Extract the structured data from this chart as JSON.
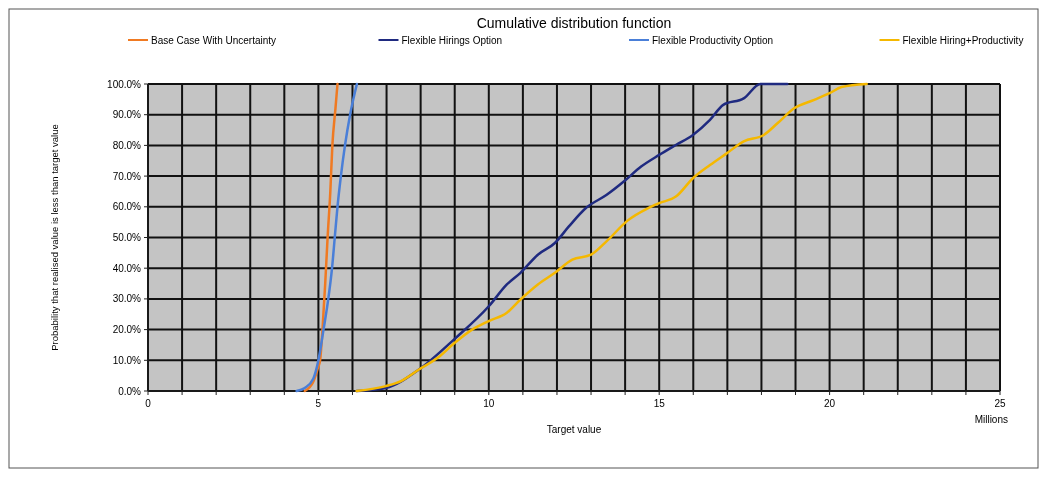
{
  "chart_data": {
    "type": "line",
    "title": "Cumulative distribution function",
    "xlabel": "Target value",
    "ylabel": "Probability that realised value is less than target value",
    "annotations": [
      "Millions"
    ],
    "xlim": [
      0,
      25
    ],
    "xticks": [
      0,
      {
        "value": 1,
        "label": null
      },
      {
        "value": 2,
        "label": null
      },
      {
        "value": 3,
        "label": null
      },
      {
        "value": 4,
        "label": null
      },
      5,
      {
        "value": 6,
        "label": null
      },
      {
        "value": 7,
        "label": null
      },
      {
        "value": 8,
        "label": null
      },
      {
        "value": 9,
        "label": null
      },
      10,
      {
        "value": 11,
        "label": null
      },
      {
        "value": 12,
        "label": null
      },
      {
        "value": 13,
        "label": null
      },
      {
        "value": 14,
        "label": null
      },
      15,
      {
        "value": 16,
        "label": null
      },
      {
        "value": 17,
        "label": null
      },
      {
        "value": 18,
        "label": null
      },
      {
        "value": 19,
        "label": null
      },
      20,
      {
        "value": 21,
        "label": null
      },
      {
        "value": 22,
        "label": null
      },
      {
        "value": 23,
        "label": null
      },
      {
        "value": 24,
        "label": null
      },
      25
    ],
    "ylim": [
      0,
      100
    ],
    "yticks": [
      {
        "value": 0,
        "label": "0.0%"
      },
      {
        "value": 10,
        "label": "10.0%"
      },
      {
        "value": 20,
        "label": "20.0%"
      },
      {
        "value": 30,
        "label": "30.0%"
      },
      {
        "value": 40,
        "label": "40.0%"
      },
      {
        "value": 50,
        "label": "50.0%"
      },
      {
        "value": 60,
        "label": "60.0%"
      },
      {
        "value": 70,
        "label": "70.0%"
      },
      {
        "value": 80,
        "label": "80.0%"
      },
      {
        "value": 90,
        "label": "90.0%"
      },
      {
        "value": 100,
        "label": "100.0%"
      }
    ],
    "grid": true,
    "legend": "top",
    "marker": "none",
    "line_style": "solid",
    "series": [
      {
        "name": "Base Case With Uncertainty",
        "color": "#f07a22",
        "x": [
          4.6,
          4.85,
          5.0,
          5.05,
          5.12,
          5.2,
          5.27,
          5.35,
          5.41,
          5.5,
          5.56
        ],
        "values": [
          0,
          3,
          8,
          10,
          20,
          35,
          50,
          65,
          80,
          92,
          100
        ]
      },
      {
        "name": "Flexible Hirings Option",
        "color": "#1f2a80",
        "x": [
          6.12,
          6.98,
          7.95,
          9.0,
          10.0,
          10.53,
          10.93,
          11.44,
          11.94,
          12.35,
          12.85,
          13.46,
          13.97,
          14.47,
          15.0,
          15.5,
          15.99,
          16.49,
          16.88,
          17.48,
          17.97,
          18.76
        ],
        "values": [
          0,
          1,
          7,
          17,
          27.6,
          34.7,
          38.5,
          44.4,
          48.2,
          53.6,
          59.6,
          63.9,
          68.3,
          73.1,
          76.9,
          80.2,
          83.4,
          88.3,
          93.2,
          95.3,
          100,
          100
        ]
      },
      {
        "name": "Flexible Productivity Option",
        "color": "#4a7fd8",
        "x": [
          4.36,
          4.6,
          4.85,
          5.0,
          5.15,
          5.29,
          5.4,
          5.48,
          5.56,
          5.66,
          5.78,
          5.93,
          6.13
        ],
        "values": [
          0,
          1,
          4,
          10,
          20,
          30,
          40,
          50,
          60,
          70,
          80,
          90,
          100
        ]
      },
      {
        "name": "Flexible Hiring+Productivity",
        "color": "#f5b800",
        "x": [
          6.12,
          6.98,
          7.44,
          7.95,
          8.5,
          9.0,
          9.51,
          10.0,
          10.53,
          10.93,
          11.44,
          11.94,
          12.45,
          13.0,
          13.46,
          14.07,
          14.68,
          15.0,
          15.5,
          15.99,
          16.49,
          16.98,
          17.48,
          18.07,
          18.47,
          18.96,
          19.55,
          20.0,
          20.35,
          21.09
        ],
        "values": [
          0,
          1.6,
          3.3,
          7,
          10.8,
          15.7,
          20,
          22.8,
          25.5,
          29.8,
          34.7,
          38.5,
          42.8,
          44.4,
          48.8,
          55.5,
          59.6,
          61.2,
          63.4,
          69.3,
          73.6,
          77.4,
          81.3,
          83.4,
          87.2,
          92.1,
          94.8,
          97,
          99,
          100
        ]
      }
    ]
  }
}
